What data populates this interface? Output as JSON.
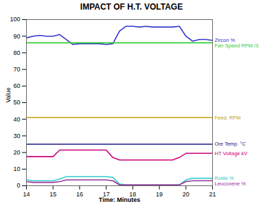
{
  "chart_data": {
    "type": "line",
    "title": "IMPACT OF H.T. VOLTAGE",
    "x_label": "Time: Minutes",
    "y_label": "Value",
    "x": [
      14,
      14.25,
      14.5,
      14.75,
      15,
      15.25,
      15.5,
      15.75,
      16,
      16.25,
      16.5,
      16.75,
      17,
      17.25,
      17.5,
      17.75,
      18,
      18.25,
      18.5,
      18.75,
      19,
      19.25,
      19.5,
      19.75,
      20,
      20.25,
      20.5,
      20.75,
      21
    ],
    "series": [
      {
        "name": "Zircon %",
        "color": "#3333cc",
        "values": [
          89,
          90,
          90.5,
          90,
          90,
          91,
          88,
          85,
          85.5,
          85.5,
          85.5,
          85.5,
          85,
          85.5,
          93,
          96,
          96,
          95.5,
          96,
          95.5,
          95.5,
          95.5,
          95.5,
          96,
          90,
          87,
          88,
          88,
          87.5
        ]
      },
      {
        "name": "Fan Speed RPM /3",
        "color": "#33cc33",
        "values": [
          86,
          86,
          86,
          86,
          86,
          86,
          86,
          86,
          86,
          86,
          86,
          86,
          86,
          86,
          86,
          86,
          86,
          86,
          86,
          86,
          86,
          86,
          86,
          86,
          86,
          86,
          86,
          86,
          86
        ]
      },
      {
        "name": "Feed. RPM",
        "color": "#c8a000",
        "values": [
          41,
          41,
          41,
          41,
          41,
          41,
          41,
          41,
          41,
          41,
          41,
          41,
          41,
          41,
          41,
          41,
          41,
          41,
          41,
          41,
          41,
          41,
          41,
          41,
          41,
          41,
          41,
          41,
          41
        ]
      },
      {
        "name": "Ore Temp. °C",
        "color": "#1a1a80",
        "values": [
          25,
          25,
          25,
          25,
          25,
          25,
          25,
          25,
          25,
          25,
          25,
          25,
          25,
          25,
          25,
          25,
          25,
          25,
          25,
          25,
          25,
          25,
          25,
          25,
          25,
          25,
          25,
          25,
          25
        ]
      },
      {
        "name": "HT Voltage kV",
        "color": "#cc0077",
        "values": [
          17.5,
          17.5,
          17.5,
          17.5,
          17.5,
          21.5,
          21.5,
          21.5,
          21.5,
          21.5,
          21.5,
          21.5,
          21.5,
          17,
          15.5,
          15.5,
          15.5,
          15.5,
          15.5,
          15.5,
          15.5,
          15.5,
          15.5,
          17,
          19.5,
          19.5,
          19.5,
          19.5,
          19.5
        ]
      },
      {
        "name": "Rutile %",
        "color": "#33cccc",
        "values": [
          3.5,
          3,
          3,
          3,
          3,
          4,
          5.5,
          5.5,
          5.5,
          5.5,
          5.5,
          5.5,
          5.5,
          5,
          1,
          0.5,
          0.5,
          0.5,
          0.5,
          0.5,
          0.5,
          0.5,
          0.5,
          0.5,
          3.5,
          4.5,
          4.5,
          4.5,
          4.5
        ]
      },
      {
        "name": "Leucoxene %",
        "color": "#993399",
        "values": [
          2.5,
          2,
          2,
          2,
          2,
          2.5,
          3.5,
          3.5,
          3.5,
          3.5,
          3.5,
          3.5,
          3.5,
          3,
          0.5,
          0.5,
          0.5,
          0.5,
          0.5,
          0.5,
          0.5,
          0.5,
          0.5,
          0.5,
          2.5,
          3,
          3,
          3,
          3
        ]
      }
    ],
    "xlim": [
      14,
      21
    ],
    "xticks": [
      14,
      15,
      16,
      17,
      18,
      19,
      20,
      21
    ],
    "ylim": [
      0,
      100
    ],
    "yticks": [
      0,
      10,
      20,
      30,
      40,
      50,
      60,
      70,
      80,
      90,
      100
    ],
    "grid": false,
    "legend": "right"
  }
}
